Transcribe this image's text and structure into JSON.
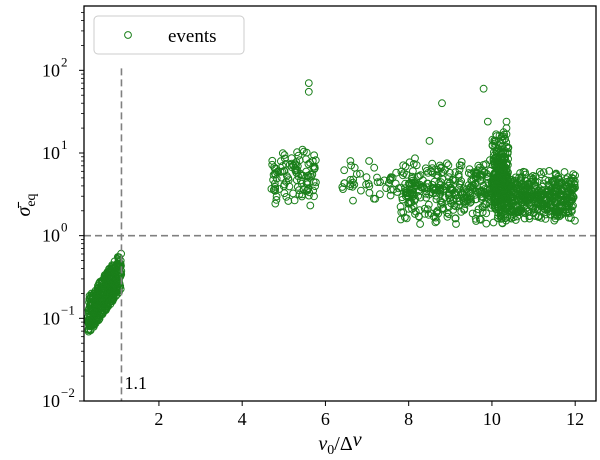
{
  "chart_data": {
    "type": "scatter",
    "title": "",
    "xlabel": "v0/Δv",
    "ylabel": "σ̄eq",
    "xscale": "linear",
    "yscale": "log",
    "xlim": [
      0.2,
      12.5
    ],
    "ylim": [
      0.01,
      600
    ],
    "xticks": [
      2,
      4,
      6,
      8,
      10,
      12
    ],
    "yticks": [
      {
        "value": 0.01,
        "base": "10",
        "exp": "−2"
      },
      {
        "value": 0.1,
        "base": "10",
        "exp": "−1"
      },
      {
        "value": 1,
        "base": "10",
        "exp": "0"
      },
      {
        "value": 10,
        "base": "10",
        "exp": "1"
      },
      {
        "value": 100,
        "base": "10",
        "exp": "2"
      }
    ],
    "reference_lines": [
      {
        "orientation": "vertical",
        "value": 1.1,
        "label": "1.1",
        "style": "dashed",
        "color": "#808080"
      },
      {
        "orientation": "horizontal",
        "value": 1.0,
        "style": "dashed",
        "color": "#808080"
      }
    ],
    "legend": {
      "location": "top-left",
      "entries": [
        "events"
      ]
    },
    "series": [
      {
        "name": "events",
        "marker": "open-circle",
        "color": "#1a7f1a",
        "clusters": [
          {
            "x_range": [
              0.3,
              1.1
            ],
            "y_range": [
              0.06,
              0.6
            ],
            "count": 420,
            "note": "dense band, y rises with x"
          },
          {
            "x_range": [
              4.7,
              5.8
            ],
            "y_range": [
              2.2,
              12
            ],
            "count": 110
          },
          {
            "x_range": [
              6.4,
              7.8
            ],
            "y_range": [
              2.5,
              8
            ],
            "count": 45
          },
          {
            "x_range": [
              7.8,
              10.4
            ],
            "y_range": [
              1.3,
              9
            ],
            "count": 380
          },
          {
            "x_range": [
              10.0,
              10.4
            ],
            "y_range": [
              1.2,
              20
            ],
            "count": 260,
            "note": "dense column"
          },
          {
            "x_range": [
              10.4,
              12.0
            ],
            "y_range": [
              1.4,
              6.5
            ],
            "count": 420
          }
        ],
        "outliers": [
          {
            "x": 5.6,
            "y": 70
          },
          {
            "x": 5.6,
            "y": 55
          },
          {
            "x": 5.45,
            "y": 11
          },
          {
            "x": 8.8,
            "y": 40
          },
          {
            "x": 9.8,
            "y": 60
          },
          {
            "x": 9.9,
            "y": 24
          },
          {
            "x": 10.35,
            "y": 24
          },
          {
            "x": 10.35,
            "y": 20
          },
          {
            "x": 8.5,
            "y": 14
          },
          {
            "x": 10.2,
            "y": 13
          },
          {
            "x": 7.05,
            "y": 8
          },
          {
            "x": 6.6,
            "y": 8
          }
        ]
      }
    ]
  }
}
